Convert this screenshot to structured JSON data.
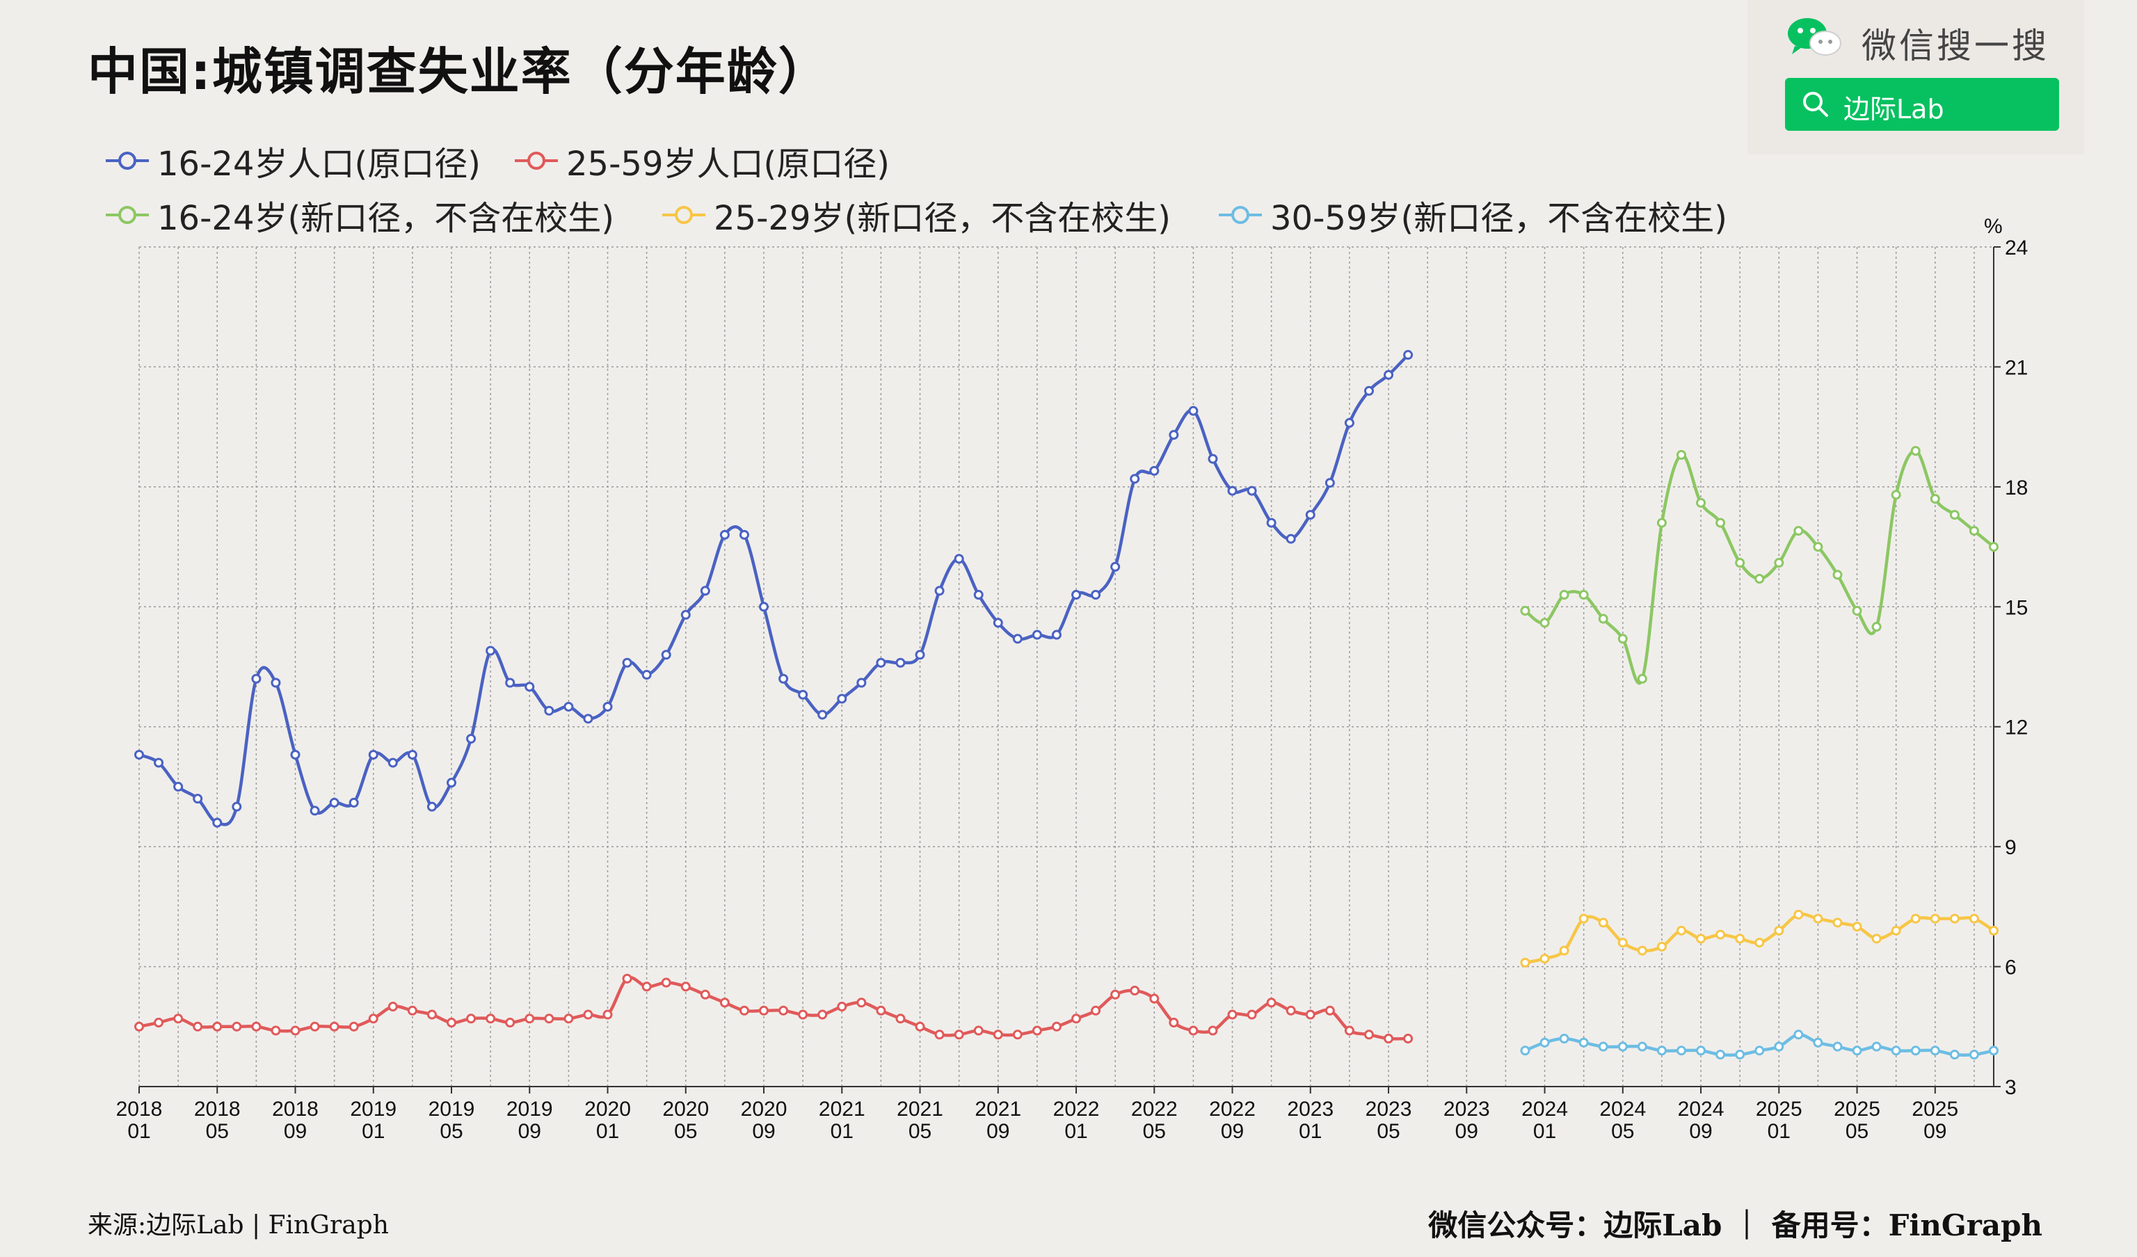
{
  "title": "中国:城镇调查失业率（分年龄）",
  "wechat": {
    "search_text": "微信搜一搜",
    "button_label": "边际Lab",
    "logo_icon": "wechat-logo-icon",
    "search_icon": "search-icon"
  },
  "legend": [
    {
      "label": "16-24岁人口(原口径)",
      "color": "#4a62c2"
    },
    {
      "label": "25-59岁人口(原口径)",
      "color": "#e05a5a"
    },
    {
      "label": "16-24岁(新口径，不含在校生)",
      "color": "#8cc763"
    },
    {
      "label": "25-29岁(新口径，不含在校生)",
      "color": "#f7c646"
    },
    {
      "label": "30-59岁(新口径，不含在校生)",
      "color": "#6dbde3"
    }
  ],
  "footer": {
    "source": "来源:边际Lab | FinGraph",
    "account": "微信公众号：边际Lab ｜ 备用号：FinGraph"
  },
  "chart_data": {
    "type": "line",
    "title": "中国:城镇调查失业率（分年龄）",
    "ylabel": "%",
    "ylim": [
      3,
      24
    ],
    "y_ticks": [
      3,
      6,
      9,
      12,
      15,
      18,
      21,
      24
    ],
    "x_tick_labels": [
      [
        "2018",
        "01"
      ],
      [
        "2018",
        "05"
      ],
      [
        "2018",
        "09"
      ],
      [
        "2019",
        "01"
      ],
      [
        "2019",
        "05"
      ],
      [
        "2019",
        "09"
      ],
      [
        "2020",
        "01"
      ],
      [
        "2020",
        "05"
      ],
      [
        "2020",
        "09"
      ],
      [
        "2021",
        "01"
      ],
      [
        "2021",
        "05"
      ],
      [
        "2021",
        "09"
      ],
      [
        "2022",
        "01"
      ],
      [
        "2022",
        "05"
      ],
      [
        "2022",
        "09"
      ],
      [
        "2023",
        "01"
      ],
      [
        "2023",
        "05"
      ],
      [
        "2023",
        "09"
      ],
      [
        "2024",
        "01"
      ],
      [
        "2024",
        "05"
      ],
      [
        "2024",
        "09"
      ],
      [
        "2025",
        "01"
      ],
      [
        "2025",
        "05"
      ],
      [
        "2025",
        "09"
      ]
    ],
    "x_range": [
      "2018-01",
      "2025-12"
    ],
    "grid": true,
    "y_axis_side": "right",
    "legend_position": "top",
    "series": [
      {
        "name": "16-24岁人口(原口径)",
        "color": "#4a62c2",
        "start": "2018-01",
        "values": [
          11.3,
          11.1,
          10.5,
          10.2,
          9.6,
          10.0,
          13.2,
          13.1,
          11.3,
          9.9,
          10.1,
          10.1,
          11.3,
          11.1,
          11.3,
          10.0,
          10.6,
          11.7,
          13.9,
          13.1,
          13.0,
          12.4,
          12.5,
          12.2,
          12.5,
          13.6,
          13.3,
          13.8,
          14.8,
          15.4,
          16.8,
          16.8,
          15.0,
          13.2,
          12.8,
          12.3,
          12.7,
          13.1,
          13.6,
          13.6,
          13.8,
          15.4,
          16.2,
          15.3,
          14.6,
          14.2,
          14.3,
          14.3,
          15.3,
          15.3,
          16.0,
          18.2,
          18.4,
          19.3,
          19.9,
          18.7,
          17.9,
          17.9,
          17.1,
          16.7,
          17.3,
          18.1,
          19.6,
          20.4,
          20.8,
          21.3
        ]
      },
      {
        "name": "25-59岁人口(原口径)",
        "color": "#e05a5a",
        "start": "2018-01",
        "values": [
          4.5,
          4.6,
          4.7,
          4.5,
          4.5,
          4.5,
          4.5,
          4.4,
          4.4,
          4.5,
          4.5,
          4.5,
          4.7,
          5.0,
          4.9,
          4.8,
          4.6,
          4.7,
          4.7,
          4.6,
          4.7,
          4.7,
          4.7,
          4.8,
          4.8,
          5.7,
          5.5,
          5.6,
          5.5,
          5.3,
          5.1,
          4.9,
          4.9,
          4.9,
          4.8,
          4.8,
          5.0,
          5.1,
          4.9,
          4.7,
          4.5,
          4.3,
          4.3,
          4.4,
          4.3,
          4.3,
          4.4,
          4.5,
          4.7,
          4.9,
          5.3,
          5.4,
          5.2,
          4.6,
          4.4,
          4.4,
          4.8,
          4.8,
          5.1,
          4.9,
          4.8,
          4.9,
          4.4,
          4.3,
          4.2,
          4.2
        ]
      },
      {
        "name": "16-24岁(新口径，不含在校生)",
        "color": "#8cc763",
        "start": "2023-12",
        "values": [
          14.9,
          14.6,
          15.3,
          15.3,
          14.7,
          14.2,
          13.2,
          17.1,
          18.8,
          17.6,
          17.1,
          16.1,
          15.7,
          16.1,
          16.9,
          16.5,
          15.8,
          14.9,
          14.5,
          17.8,
          18.9,
          17.7,
          17.3,
          16.9,
          16.5
        ]
      },
      {
        "name": "25-29岁(新口径，不含在校生)",
        "color": "#f7c646",
        "start": "2023-12",
        "values": [
          6.1,
          6.2,
          6.4,
          7.2,
          7.1,
          6.6,
          6.4,
          6.5,
          6.9,
          6.7,
          6.8,
          6.7,
          6.6,
          6.9,
          7.3,
          7.2,
          7.1,
          7.0,
          6.7,
          6.9,
          7.2,
          7.2,
          7.2,
          7.2,
          6.9
        ]
      },
      {
        "name": "30-59岁(新口径，不含在校生)",
        "color": "#6dbde3",
        "start": "2023-12",
        "values": [
          3.9,
          4.1,
          4.2,
          4.1,
          4.0,
          4.0,
          4.0,
          3.9,
          3.9,
          3.9,
          3.8,
          3.8,
          3.9,
          4.0,
          4.3,
          4.1,
          4.0,
          3.9,
          4.0,
          3.9,
          3.9,
          3.9,
          3.8,
          3.8,
          3.9
        ]
      }
    ]
  }
}
